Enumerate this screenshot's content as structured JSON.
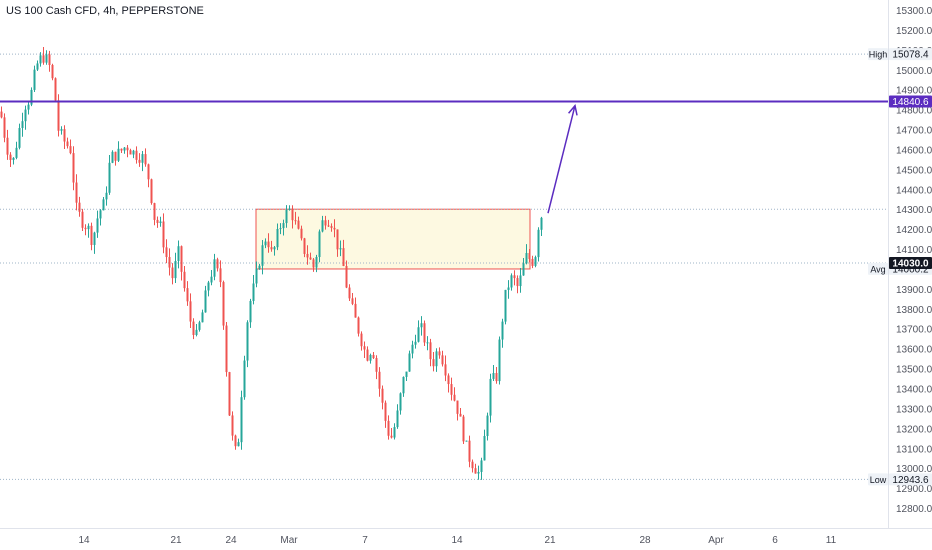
{
  "title": "US 100 Cash CFD, 4h, PEPPERSTONE",
  "colors": {
    "up": "#26a69a",
    "down": "#ef5350",
    "resistance_line": "#5b2cc0",
    "zone_fill": "#fdf9e1",
    "zone_border": "#ef5350",
    "dotted_line": "#9fb4c7",
    "price_label_bg": "#131722",
    "scale_text": "#50535e"
  },
  "chart_data": {
    "type": "candlestick",
    "title": "US 100 Cash CFD, 4h, PEPPERSTONE",
    "xlabel": "",
    "ylabel": "",
    "ylim": [
      12750,
      15320
    ],
    "y_ticks": [
      15300,
      15200,
      15100,
      15000,
      14900,
      14800,
      14700,
      14600,
      14500,
      14400,
      14300,
      14200,
      14100,
      14000,
      13900,
      13800,
      13700,
      13600,
      13500,
      13400,
      13300,
      13200,
      13100,
      13000,
      12900,
      12800
    ],
    "y_tick_labels": [
      "15300.0",
      "15200.0",
      "15100.0",
      "15000.0",
      "14900.0",
      "14800.0",
      "14700.0",
      "14600.0",
      "14500.0",
      "14400.0",
      "14300.0",
      "14200.0",
      "14100.0",
      "14000.0",
      "13900.0",
      "13800.0",
      "13700.0",
      "13600.0",
      "13500.0",
      "13400.0",
      "13300.0",
      "13200.0",
      "13100.0",
      "13000.0",
      "12900.0",
      "12800.0"
    ],
    "x_tick_labels": [
      "14",
      "21",
      "24",
      "Mar",
      "7",
      "14",
      "21",
      "28",
      "Apr",
      "6",
      "11"
    ],
    "path": [
      [
        0,
        14790
      ],
      [
        6,
        14620
      ],
      [
        12,
        14520
      ],
      [
        18,
        14680
      ],
      [
        24,
        14820
      ],
      [
        30,
        14860
      ],
      [
        36,
        15020
      ],
      [
        42,
        15070
      ],
      [
        48,
        15040
      ],
      [
        54,
        14900
      ],
      [
        58,
        14700
      ],
      [
        64,
        14640
      ],
      [
        70,
        14600
      ],
      [
        76,
        14300
      ],
      [
        82,
        14240
      ],
      [
        88,
        14200
      ],
      [
        92,
        14140
      ],
      [
        98,
        14280
      ],
      [
        104,
        14330
      ],
      [
        110,
        14560
      ],
      [
        118,
        14580
      ],
      [
        126,
        14620
      ],
      [
        134,
        14580
      ],
      [
        142,
        14560
      ],
      [
        148,
        14460
      ],
      [
        154,
        14260
      ],
      [
        160,
        14210
      ],
      [
        166,
        14060
      ],
      [
        172,
        13960
      ],
      [
        178,
        14080
      ],
      [
        184,
        13900
      ],
      [
        190,
        13740
      ],
      [
        196,
        13660
      ],
      [
        202,
        13780
      ],
      [
        208,
        13940
      ],
      [
        214,
        14020
      ],
      [
        220,
        13940
      ],
      [
        224,
        13680
      ],
      [
        228,
        13320
      ],
      [
        234,
        13060
      ],
      [
        238,
        13150
      ],
      [
        242,
        13460
      ],
      [
        248,
        13800
      ],
      [
        254,
        13920
      ],
      [
        260,
        14070
      ],
      [
        266,
        14170
      ],
      [
        272,
        14060
      ],
      [
        278,
        14190
      ],
      [
        284,
        14270
      ],
      [
        290,
        14300
      ],
      [
        296,
        14210
      ],
      [
        302,
        14110
      ],
      [
        308,
        14060
      ],
      [
        314,
        14000
      ],
      [
        320,
        14220
      ],
      [
        326,
        14260
      ],
      [
        332,
        14230
      ],
      [
        338,
        14100
      ],
      [
        342,
        14040
      ],
      [
        348,
        13860
      ],
      [
        354,
        13760
      ],
      [
        360,
        13660
      ],
      [
        366,
        13560
      ],
      [
        372,
        13610
      ],
      [
        378,
        13430
      ],
      [
        384,
        13260
      ],
      [
        390,
        13140
      ],
      [
        396,
        13240
      ],
      [
        402,
        13420
      ],
      [
        408,
        13540
      ],
      [
        414,
        13660
      ],
      [
        420,
        13710
      ],
      [
        426,
        13620
      ],
      [
        432,
        13520
      ],
      [
        438,
        13610
      ],
      [
        444,
        13520
      ],
      [
        450,
        13400
      ],
      [
        456,
        13320
      ],
      [
        462,
        13190
      ],
      [
        468,
        13060
      ],
      [
        474,
        13010
      ],
      [
        480,
        12960
      ],
      [
        484,
        13150
      ],
      [
        490,
        13430
      ],
      [
        496,
        13460
      ],
      [
        500,
        13680
      ],
      [
        506,
        13900
      ],
      [
        512,
        13960
      ],
      [
        518,
        13900
      ],
      [
        522,
        14000
      ],
      [
        526,
        14060
      ],
      [
        530,
        14050
      ],
      [
        534,
        14030
      ],
      [
        538,
        14220
      ],
      [
        543,
        14300
      ]
    ],
    "high": {
      "label": "High",
      "value": "15078.4",
      "price": 15078.4
    },
    "low": {
      "label": "Low",
      "value": "12943.6",
      "price": 12943.6
    },
    "avg": {
      "label": "Avg",
      "value": "14000.2",
      "price": 14000.2
    },
    "current": {
      "value": "14030.0",
      "price": 14030.0
    },
    "resistance": {
      "value": "14840.6",
      "price": 14840.6
    },
    "zone": {
      "top": 14300,
      "bottom": 14000
    },
    "arrow": {
      "from_price": 14280,
      "to_price": 14820
    },
    "grid": false
  }
}
